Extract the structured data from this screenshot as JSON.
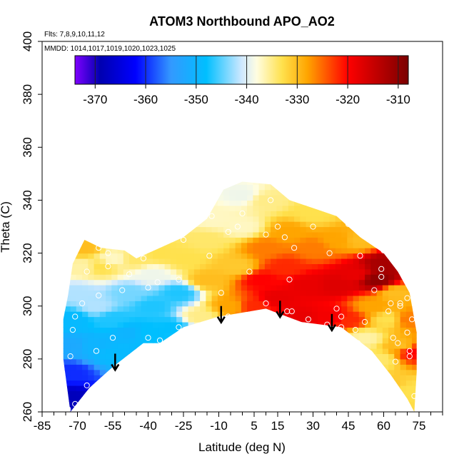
{
  "chart_data": {
    "type": "heatmap",
    "title": "ATOM3 Northbound APO_AO2",
    "annotations": {
      "flights": "Flts: 7,8,9,10,11,12",
      "dates": "MMDD: 1014,1017,1019,1020,1023,1025"
    },
    "xlabel": "Latitude (deg N)",
    "ylabel": "Theta (C)",
    "xlim": [
      -85,
      85
    ],
    "ylim": [
      260,
      400
    ],
    "xticks": [
      -85,
      -70,
      -55,
      -40,
      -25,
      -10,
      5,
      15,
      30,
      45,
      60,
      75
    ],
    "yticks": [
      260,
      280,
      300,
      320,
      340,
      360,
      380,
      400
    ],
    "colorbar": {
      "range": [
        -374,
        -308
      ],
      "ticks": [
        -370,
        -360,
        -350,
        -340,
        -330,
        -320,
        -310
      ],
      "stops": [
        {
          "value": -374,
          "color": "#7f00ff"
        },
        {
          "value": -369,
          "color": "#0000b0"
        },
        {
          "value": -362,
          "color": "#0000ff"
        },
        {
          "value": -355,
          "color": "#3399ff"
        },
        {
          "value": -348,
          "color": "#00bfff"
        },
        {
          "value": -341,
          "color": "#cfe8ff"
        },
        {
          "value": -338,
          "color": "#fffde0"
        },
        {
          "value": -333,
          "color": "#ffe14d"
        },
        {
          "value": -328,
          "color": "#ffa500"
        },
        {
          "value": -320,
          "color": "#ff0000"
        },
        {
          "value": -308,
          "color": "#7a0000"
        }
      ]
    },
    "lower_boundary": [
      [
        -73,
        260
      ],
      [
        -65,
        269
      ],
      [
        -55,
        277
      ],
      [
        -42,
        286
      ],
      [
        -35,
        286
      ],
      [
        -25,
        292
      ],
      [
        -10,
        296
      ],
      [
        10,
        299
      ],
      [
        25,
        294
      ],
      [
        42,
        292
      ],
      [
        55,
        283
      ],
      [
        63,
        274
      ],
      [
        70,
        265
      ],
      [
        73,
        260
      ]
    ],
    "upper_boundary": [
      [
        -76,
        280
      ],
      [
        -76,
        295
      ],
      [
        -74,
        304
      ],
      [
        -72,
        316
      ],
      [
        -67,
        325
      ],
      [
        -60,
        322
      ],
      [
        -50,
        321
      ],
      [
        -45,
        318
      ],
      [
        -35,
        322
      ],
      [
        -25,
        326
      ],
      [
        -15,
        333
      ],
      [
        -8,
        344
      ],
      [
        0,
        347
      ],
      [
        12,
        346
      ],
      [
        20,
        340
      ],
      [
        30,
        337
      ],
      [
        40,
        334
      ],
      [
        50,
        326
      ],
      [
        60,
        320
      ],
      [
        66,
        313
      ],
      [
        71,
        305
      ],
      [
        74,
        290
      ],
      [
        74,
        275
      ],
      [
        73,
        260
      ]
    ],
    "field": [
      {
        "lat": -74,
        "theta": 265,
        "value": -368
      },
      {
        "lat": -73,
        "theta": 275,
        "value": -360
      },
      {
        "lat": -72,
        "theta": 285,
        "value": -352
      },
      {
        "lat": -72,
        "theta": 295,
        "value": -349
      },
      {
        "lat": -70,
        "theta": 305,
        "value": -342
      },
      {
        "lat": -68,
        "theta": 315,
        "value": -336
      },
      {
        "lat": -67,
        "theta": 322,
        "value": -330
      },
      {
        "lat": -63,
        "theta": 285,
        "value": -350
      },
      {
        "lat": -62,
        "theta": 300,
        "value": -342
      },
      {
        "lat": -60,
        "theta": 315,
        "value": -333
      },
      {
        "lat": -55,
        "theta": 282,
        "value": -349
      },
      {
        "lat": -55,
        "theta": 295,
        "value": -347
      },
      {
        "lat": -55,
        "theta": 318,
        "value": -337
      },
      {
        "lat": -48,
        "theta": 290,
        "value": -350
      },
      {
        "lat": -48,
        "theta": 305,
        "value": -344
      },
      {
        "lat": -45,
        "theta": 318,
        "value": -334
      },
      {
        "lat": -40,
        "theta": 290,
        "value": -348
      },
      {
        "lat": -38,
        "theta": 300,
        "value": -347
      },
      {
        "lat": -38,
        "theta": 312,
        "value": -339
      },
      {
        "lat": -35,
        "theta": 320,
        "value": -333
      },
      {
        "lat": -30,
        "theta": 292,
        "value": -348
      },
      {
        "lat": -27,
        "theta": 305,
        "value": -347
      },
      {
        "lat": -25,
        "theta": 318,
        "value": -333
      },
      {
        "lat": -18,
        "theta": 296,
        "value": -335
      },
      {
        "lat": -15,
        "theta": 310,
        "value": -330
      },
      {
        "lat": -15,
        "theta": 325,
        "value": -334
      },
      {
        "lat": -12,
        "theta": 333,
        "value": -337
      },
      {
        "lat": -5,
        "theta": 300,
        "value": -328
      },
      {
        "lat": -2,
        "theta": 315,
        "value": -331
      },
      {
        "lat": 0,
        "theta": 330,
        "value": -337
      },
      {
        "lat": 0,
        "theta": 342,
        "value": -339
      },
      {
        "lat": 5,
        "theta": 300,
        "value": -322
      },
      {
        "lat": 8,
        "theta": 310,
        "value": -320
      },
      {
        "lat": 10,
        "theta": 322,
        "value": -326
      },
      {
        "lat": 10,
        "theta": 340,
        "value": -335
      },
      {
        "lat": 15,
        "theta": 303,
        "value": -318
      },
      {
        "lat": 18,
        "theta": 315,
        "value": -322
      },
      {
        "lat": 20,
        "theta": 328,
        "value": -328
      },
      {
        "lat": 25,
        "theta": 296,
        "value": -318
      },
      {
        "lat": 28,
        "theta": 308,
        "value": -318
      },
      {
        "lat": 30,
        "theta": 322,
        "value": -326
      },
      {
        "lat": 30,
        "theta": 335,
        "value": -333
      },
      {
        "lat": 38,
        "theta": 296,
        "value": -319
      },
      {
        "lat": 40,
        "theta": 308,
        "value": -317
      },
      {
        "lat": 40,
        "theta": 325,
        "value": -328
      },
      {
        "lat": 45,
        "theta": 295,
        "value": -322
      },
      {
        "lat": 48,
        "theta": 312,
        "value": -318
      },
      {
        "lat": 50,
        "theta": 325,
        "value": -330
      },
      {
        "lat": 52,
        "theta": 288,
        "value": -336
      },
      {
        "lat": 55,
        "theta": 300,
        "value": -328
      },
      {
        "lat": 57,
        "theta": 310,
        "value": -310
      },
      {
        "lat": 60,
        "theta": 316,
        "value": -312
      },
      {
        "lat": 58,
        "theta": 280,
        "value": -334
      },
      {
        "lat": 62,
        "theta": 295,
        "value": -333
      },
      {
        "lat": 65,
        "theta": 305,
        "value": -330
      },
      {
        "lat": 63,
        "theta": 270,
        "value": -331
      },
      {
        "lat": 68,
        "theta": 285,
        "value": -330
      },
      {
        "lat": 70,
        "theta": 295,
        "value": -326
      },
      {
        "lat": 72,
        "theta": 283,
        "value": -320
      },
      {
        "lat": 71,
        "theta": 268,
        "value": -333
      }
    ],
    "sample_points": [
      [
        -74,
        261
      ],
      [
        -71,
        263
      ],
      [
        -73,
        281
      ],
      [
        -72,
        291
      ],
      [
        -71,
        296
      ],
      [
        -68,
        301
      ],
      [
        -61,
        304
      ],
      [
        -66,
        313
      ],
      [
        -61,
        322
      ],
      [
        -57,
        320
      ],
      [
        -57,
        315
      ],
      [
        -62,
        283
      ],
      [
        -66,
        270
      ],
      [
        -55,
        288
      ],
      [
        -51,
        306
      ],
      [
        -48,
        312
      ],
      [
        -40,
        288
      ],
      [
        -40,
        307
      ],
      [
        -42,
        318
      ],
      [
        -35,
        287
      ],
      [
        -36,
        309
      ],
      [
        -27,
        292
      ],
      [
        -27,
        310
      ],
      [
        -25,
        325
      ],
      [
        -14,
        319
      ],
      [
        -13,
        334
      ],
      [
        -6,
        296
      ],
      [
        -9,
        305
      ],
      [
        -6,
        328
      ],
      [
        -2,
        330
      ],
      [
        0,
        335
      ],
      [
        3,
        313
      ],
      [
        10,
        301
      ],
      [
        10,
        327
      ],
      [
        15,
        330
      ],
      [
        12,
        340
      ],
      [
        18,
        326
      ],
      [
        20,
        310
      ],
      [
        19,
        298
      ],
      [
        21,
        298
      ],
      [
        22,
        322
      ],
      [
        28,
        295
      ],
      [
        30,
        330
      ],
      [
        36,
        293
      ],
      [
        37,
        320
      ],
      [
        40,
        299
      ],
      [
        42,
        296
      ],
      [
        42,
        292
      ],
      [
        45,
        331
      ],
      [
        48,
        291
      ],
      [
        50,
        319
      ],
      [
        49,
        286
      ],
      [
        52,
        294
      ],
      [
        56,
        306
      ],
      [
        59,
        311
      ],
      [
        59,
        314
      ],
      [
        60,
        321
      ],
      [
        62,
        298
      ],
      [
        63,
        301
      ],
      [
        64,
        288
      ],
      [
        66,
        286
      ],
      [
        65,
        279
      ],
      [
        67,
        301
      ],
      [
        67,
        300
      ],
      [
        70,
        303
      ],
      [
        70,
        290
      ],
      [
        71,
        281
      ],
      [
        72,
        295
      ],
      [
        71,
        283
      ],
      [
        73,
        266
      ]
    ],
    "arrows": [
      {
        "lat": -54,
        "theta": 282
      },
      {
        "lat": -9,
        "theta": 300
      },
      {
        "lat": 16,
        "theta": 302
      },
      {
        "lat": 38,
        "theta": 297
      }
    ]
  }
}
